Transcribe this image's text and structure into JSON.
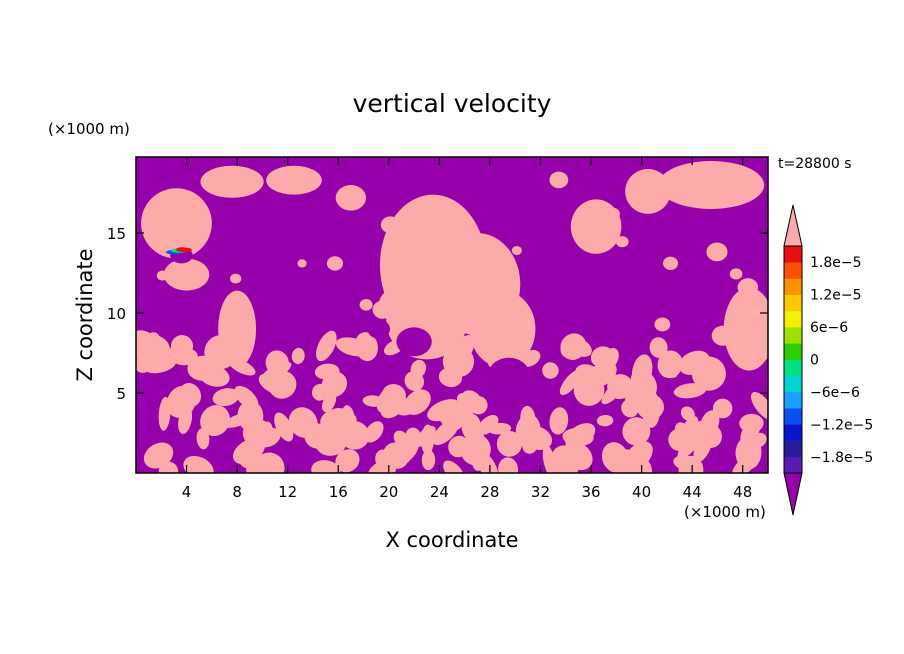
{
  "chart_data": {
    "type": "heatmap",
    "title": "vertical velocity",
    "xlabel": "X coordinate",
    "ylabel": "Z coordinate",
    "x_unit": "(×1000 m)",
    "y_unit": "(×1000 m)",
    "time_label": "t=28800 s",
    "xlim": [
      0,
      50
    ],
    "ylim": [
      0,
      19.75
    ],
    "x_ticks": [
      4,
      8,
      12,
      16,
      20,
      24,
      28,
      32,
      36,
      40,
      44,
      48
    ],
    "y_ticks": [
      5,
      10,
      15
    ],
    "colorbar": {
      "levels": [
        -2.1e-05,
        -1.8e-05,
        -1.5e-05,
        -1.2e-05,
        -9e-06,
        -6e-06,
        -3e-06,
        0,
        3e-06,
        6e-06,
        9e-06,
        1.2e-05,
        1.5e-05,
        1.8e-05,
        2.1e-05
      ],
      "colors": [
        "#5a1ab4",
        "#2a1a9c",
        "#0a14c8",
        "#0a50f0",
        "#1aa0ff",
        "#00d2d2",
        "#00e080",
        "#2ad000",
        "#a0e000",
        "#f0f000",
        "#ffc800",
        "#ff9000",
        "#ff5000",
        "#e81010"
      ],
      "tick_labels": [
        "1.8e−5",
        "1.2e−5",
        "6e−6",
        "0",
        "−6e−6",
        "−1.2e−5",
        "−1.8e−5"
      ],
      "tick_values": [
        1.8e-05,
        1.2e-05,
        6e-06,
        0,
        -6e-06,
        -1.2e-05,
        -1.8e-05
      ],
      "low_color": "#9600aa",
      "high_color": "#fcaaaa"
    },
    "field_colors": {
      "updraft": "#fcaaaa",
      "downdraft": "#9600aa"
    }
  }
}
